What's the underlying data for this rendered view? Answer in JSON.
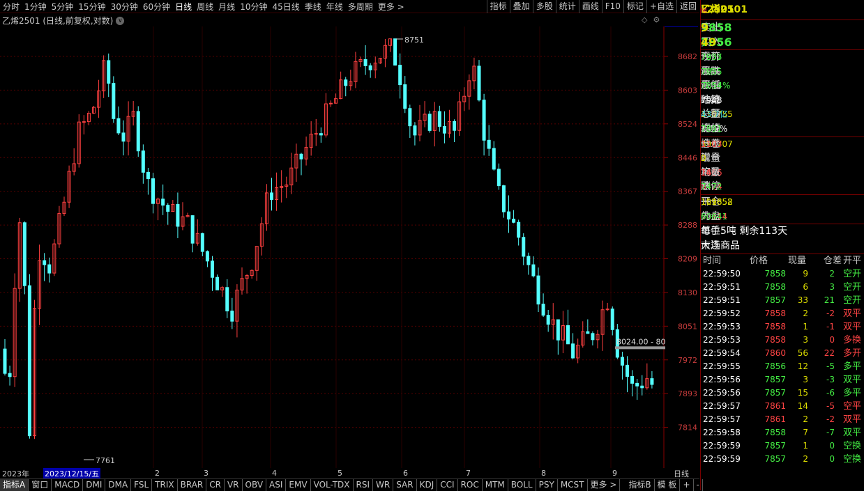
{
  "toolbar": {
    "periods": [
      "分时",
      "1分钟",
      "5分钟",
      "15分钟",
      "30分钟",
      "60分钟",
      "日线",
      "周线",
      "月线",
      "10分钟",
      "45日线",
      "季线",
      "年线",
      "多周期",
      "更多 >"
    ],
    "selected": "日线",
    "right": [
      "指标",
      "叠加",
      "多股",
      "统计",
      "画线",
      "F10",
      "标记",
      "+自选",
      "返回"
    ]
  },
  "chart": {
    "title": "乙烯2501 (日线,前复权,对数)",
    "highLabel": "8751",
    "lowLabel": "7761",
    "priceTag": "8751.0",
    "crosshairLabel": "8024.00 - 80",
    "yTicks": [
      "8682",
      "8603",
      "8524",
      "8446",
      "8367",
      "8288",
      "8209",
      "8130",
      "8051",
      "7972",
      "7893",
      "7814"
    ],
    "monthLabels": [
      "2",
      "3",
      "4",
      "5",
      "6",
      "7",
      "8",
      "9"
    ],
    "yearLabel": "2023年",
    "dateLabel": "2023/12/15/五",
    "periodLabel": "日线",
    "axisBtns": [
      "+",
      "-"
    ]
  },
  "chart_data": {
    "type": "candlestick",
    "ylim": [
      7761,
      8751
    ],
    "high": 8751,
    "low": 7761
  },
  "indicators": {
    "items": [
      "指标A",
      "窗口",
      "MACD",
      "DMI",
      "DMA",
      "FSL",
      "TRIX",
      "BRAR",
      "CR",
      "VR",
      "OBV",
      "ASI",
      "EMV",
      "VOL-TDX",
      "RSI",
      "WR",
      "SAR",
      "KDJ",
      "CCI",
      "ROC",
      "MTM",
      "BOLL",
      "PSY",
      "MCST",
      "更多 >"
    ],
    "right": [
      "指标B",
      "模 板"
    ],
    "selected": "指标A"
  },
  "panel": {
    "symbol": "L2501",
    "name": "乙烯2501",
    "tag": "M",
    "ask": {
      "label": "卖出",
      "price": "7858",
      "vol": "9"
    },
    "bid": {
      "label": "买入",
      "price": "7856",
      "vol": "49"
    },
    "q1": [
      {
        "l": "现价",
        "v": "7857",
        "vc": "g",
        "l2": "今开",
        "v2": "7935",
        "v2c": "g"
      },
      {
        "l": "涨跌",
        "v": "-91",
        "vc": "g",
        "l2": "最高",
        "v2": "7935",
        "v2c": "g"
      },
      {
        "l": "涨幅",
        "v": "-1.14%",
        "vc": "g",
        "l2": "最低",
        "v2": "7854",
        "v2c": "g"
      },
      {
        "l": "结算",
        "v": "",
        "vc": "w",
        "l2": "昨结",
        "v2": "7948",
        "v2c": "wh"
      },
      {
        "l": "总量",
        "v": "110755",
        "vc": "y",
        "l2": "总额",
        "v2": "43.7亿",
        "v2c": "c"
      },
      {
        "l": "振幅",
        "v": "1.02%",
        "vc": "wh",
        "l2": "均价",
        "v2": "7891",
        "v2c": "g"
      }
    ],
    "q2": [
      {
        "l": "持仓",
        "v": "396707",
        "vc": "y",
        "l2": "仓差",
        "v2": "1103",
        "v2c": "r"
      },
      {
        "l": "现量",
        "v": "2",
        "vc": "y",
        "l2": "增仓",
        "v2": "0",
        "v2c": "y"
      },
      {
        "l": "笔数",
        "v": "7666",
        "vc": "r",
        "l2": "均量",
        "v2": "14",
        "v2c": "r"
      },
      {
        "l": "涨停",
        "v": "8424",
        "vc": "r",
        "l2": "跌停",
        "v2": "7472",
        "v2c": "g"
      }
    ],
    "q3": [
      {
        "l": "开仓",
        "v": "111858",
        "vc": "y",
        "l2": "平仓",
        "v2": "109652",
        "v2c": "y"
      },
      {
        "l": "外盘",
        "v": "50114",
        "vc": "r",
        "l2": "内盘",
        "v2": "60641",
        "v2c": "g"
      }
    ],
    "unit": {
      "label": "单位",
      "value": "每手5吨  剩余113天"
    },
    "market": {
      "label": "市场",
      "value": "大连商品"
    },
    "tickHeader": [
      "时间",
      "价格",
      "现量",
      "仓差",
      "开平"
    ],
    "ticks": [
      [
        "22:59:50",
        "7858",
        "9",
        "2",
        "空开",
        "g"
      ],
      [
        "22:59:51",
        "7858",
        "6",
        "3",
        "空开",
        "g"
      ],
      [
        "22:59:51",
        "7857",
        "33",
        "21",
        "空开",
        "g"
      ],
      [
        "22:59:52",
        "7858",
        "2",
        "-2",
        "双平",
        "r"
      ],
      [
        "22:59:53",
        "7858",
        "1",
        "-1",
        "双平",
        "r"
      ],
      [
        "22:59:53",
        "7858",
        "3",
        "0",
        "多换",
        "r"
      ],
      [
        "22:59:54",
        "7860",
        "56",
        "22",
        "多开",
        "r"
      ],
      [
        "22:59:55",
        "7856",
        "12",
        "-5",
        "多平",
        "g"
      ],
      [
        "22:59:56",
        "7857",
        "3",
        "-3",
        "双平",
        "g"
      ],
      [
        "22:59:56",
        "7857",
        "15",
        "-6",
        "多平",
        "g"
      ],
      [
        "22:59:57",
        "7861",
        "14",
        "-5",
        "空平",
        "r"
      ],
      [
        "22:59:57",
        "7861",
        "2",
        "-2",
        "双平",
        "r"
      ],
      [
        "22:59:58",
        "7858",
        "7",
        "-7",
        "双平",
        "g"
      ],
      [
        "22:59:59",
        "7857",
        "1",
        "0",
        "空换",
        "g"
      ],
      [
        "22:59:59",
        "7857",
        "2",
        "0",
        "空换",
        "g"
      ]
    ]
  }
}
